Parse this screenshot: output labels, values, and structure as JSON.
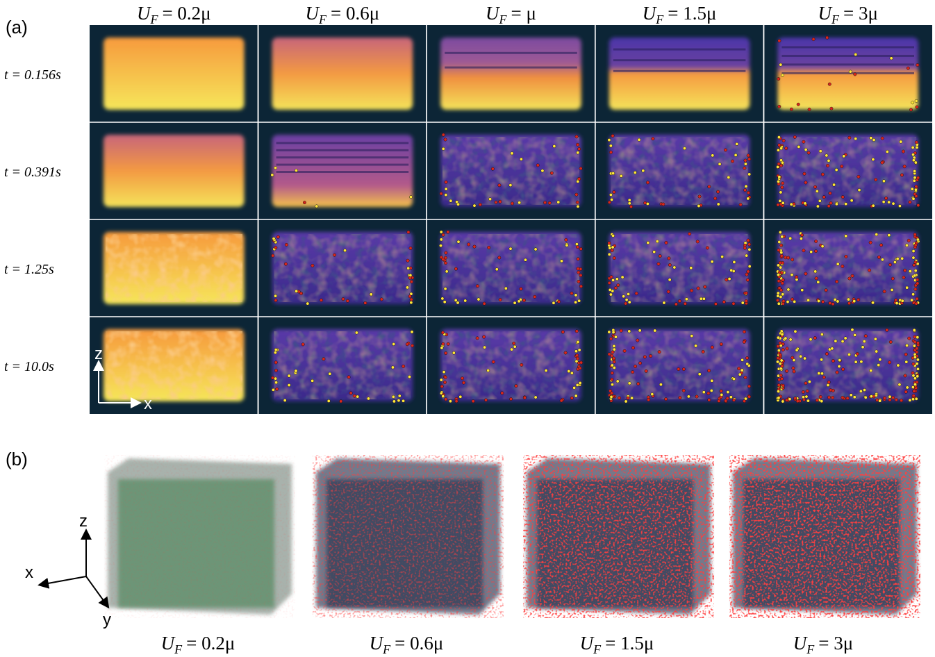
{
  "panel_a": {
    "label": "(a)",
    "columns": [
      {
        "var": "U",
        "sub": "F",
        "rhs": "= 0.2μ"
      },
      {
        "var": "U",
        "sub": "F",
        "rhs": "= 0.6μ"
      },
      {
        "var": "U",
        "sub": "F",
        "rhs": "= μ"
      },
      {
        "var": "U",
        "sub": "F",
        "rhs": "= 1.5μ"
      },
      {
        "var": "U",
        "sub": "F",
        "rhs": "= 3μ"
      }
    ],
    "rows": [
      "t = 0.156s",
      "t = 0.391s",
      "t = 1.25s",
      "t = 10.0s"
    ],
    "axes": {
      "z": "z",
      "x": "x"
    }
  },
  "panel_b": {
    "label": "(b)",
    "columns": [
      {
        "var": "U",
        "sub": "F",
        "rhs": "= 0.2μ"
      },
      {
        "var": "U",
        "sub": "F",
        "rhs": "= 0.6μ"
      },
      {
        "var": "U",
        "sub": "F",
        "rhs": "= 1.5μ"
      },
      {
        "var": "U",
        "sub": "F",
        "rhs": "= 3μ"
      }
    ],
    "axes": {
      "z": "z",
      "x": "x",
      "y": "y"
    }
  }
}
